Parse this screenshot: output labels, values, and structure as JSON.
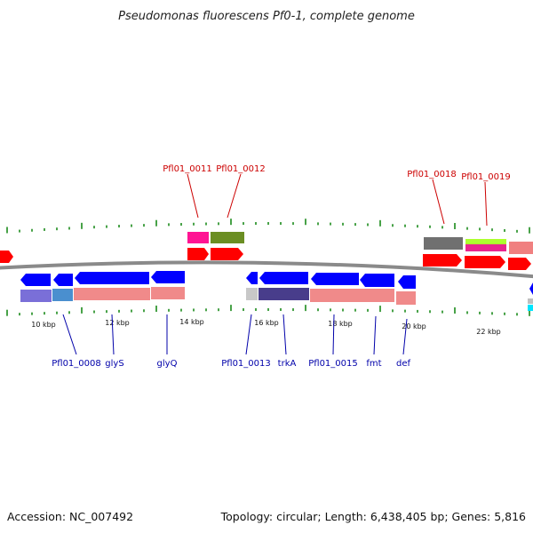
{
  "title": "Pseudomonas fluorescens Pf0-1, complete genome",
  "footer": {
    "accession": "Accession: NC_007492",
    "summary": "Topology: circular; Length: 6,438,405 bp; Genes: 5,816"
  },
  "colors": {
    "forward_label": "#cc0000",
    "reverse_label": "#0000aa",
    "backbone": "#8a8a8a",
    "tick": "#1a8a1a",
    "forward_cds": "#ff0000",
    "reverse_cds": "#0000ff",
    "accent_cyan": "#00e5ff"
  },
  "ruler": {
    "labels": [
      "10 kbp",
      "12 kbp",
      "14 kbp",
      "16 kbp",
      "18 kbp",
      "20 kbp",
      "22 kbp"
    ]
  },
  "forward_labels": [
    "Pfl01_0011",
    "Pfl01_0012",
    "Pfl01_0018",
    "Pfl01_0019"
  ],
  "reverse_labels": [
    "Pfl01_0008",
    "glyS",
    "glyQ",
    "Pfl01_0013",
    "trkA",
    "Pfl01_0015",
    "fmt",
    "def"
  ]
}
